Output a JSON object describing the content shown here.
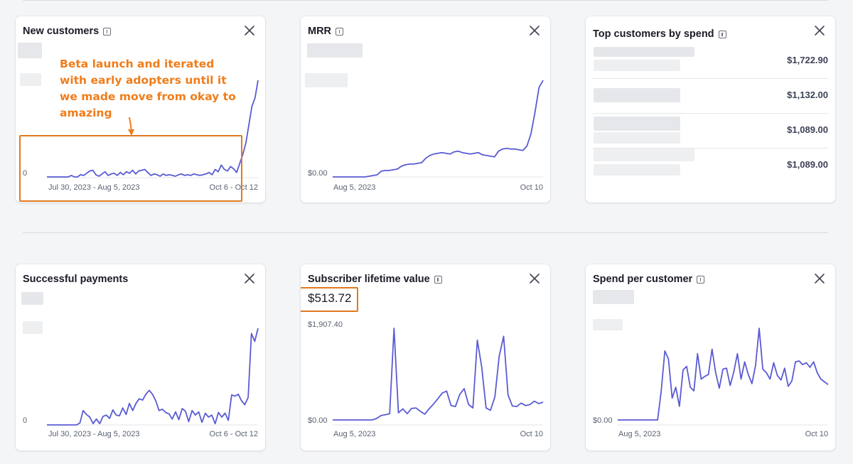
{
  "cards": [
    {
      "id": "new_customers",
      "title": "New customers",
      "close": "×"
    },
    {
      "id": "mrr",
      "title": "MRR",
      "close": "×"
    },
    {
      "id": "top_customers",
      "title": "Top customers by spend",
      "close": "×"
    },
    {
      "id": "successful_payments",
      "title": "Successful payments",
      "close": "×"
    },
    {
      "id": "subscriber_ltv",
      "title": "Subscriber lifetime value",
      "value": "$513.72",
      "close": "×"
    },
    {
      "id": "spend_per_customer",
      "title": "Spend per customer",
      "close": "×"
    }
  ],
  "annotation": {
    "text": "Beta launch and iterated with early adopters until it we made move from okay to amazing",
    "color": "#f07c1a"
  },
  "top_customers": {
    "amounts": [
      "$1,722.90",
      "$1,132.00",
      "$1,089.00",
      "$1,089.00"
    ]
  },
  "colors": {
    "line": "#5a5bd4",
    "highlight": "#e07a1f",
    "axis": "#596171"
  },
  "chart_data": [
    {
      "type": "line",
      "card": "New customers",
      "y_label_min": "0",
      "x_tick_labels": [
        "Jul 30, 2023 - Aug 5, 2023",
        "Oct 6 - Oct 12"
      ],
      "series": [
        {
          "values": [
            0,
            0,
            0,
            0,
            0,
            0,
            0,
            0,
            0.2,
            0,
            0,
            0.3,
            0.2,
            0.5,
            0.8,
            0.9,
            0.3,
            0.1,
            0.4,
            0.7,
            0.2,
            0.4,
            0.5,
            0.2,
            0.6,
            0.3,
            0.7,
            0.5,
            0.9,
            0.4,
            0.8,
            0.9,
            1.0,
            0.6,
            0.2,
            0.4,
            0.3,
            0.1,
            0.4,
            0.2,
            0.3,
            0.2,
            0.1,
            0.3,
            0.4,
            0.2,
            0.3,
            0.2,
            0.4,
            0.3,
            0.2,
            0.3,
            0.4,
            0.6,
            0.3,
            1.0,
            0.7,
            1.6,
            1.0,
            0.8,
            1.4,
            1.1,
            0.6,
            1.8,
            3.0,
            4.5,
            7.0,
            9.5,
            10.6,
            13.0
          ]
        }
      ]
    },
    {
      "type": "line",
      "card": "MRR",
      "y_label_min": "$0.00",
      "x_tick_labels": [
        "Aug 5, 2023",
        "Oct 10"
      ],
      "series": [
        {
          "values": [
            0,
            0,
            0,
            0,
            0,
            0,
            0,
            0,
            0,
            0.1,
            0.2,
            0.3,
            0.8,
            0.9,
            0.9,
            1.0,
            1.1,
            1.5,
            1.7,
            1.8,
            1.8,
            1.9,
            2.0,
            2.6,
            3.0,
            3.2,
            3.3,
            3.4,
            3.3,
            3.2,
            3.5,
            3.6,
            3.4,
            3.3,
            3.2,
            3.3,
            3.4,
            3.1,
            3.0,
            2.9,
            2.8,
            3.6,
            3.9,
            4.0,
            3.9,
            3.9,
            3.8,
            3.7,
            4.3,
            6.0,
            9.0,
            12.5,
            13.5
          ]
        }
      ]
    },
    {
      "type": "line",
      "card": "Successful payments",
      "y_label_min": "0",
      "x_tick_labels": [
        "Jul 30, 2023 - Aug 5, 2023",
        "Oct 6 - Oct 12"
      ],
      "series": [
        {
          "values": [
            0,
            0,
            0,
            0,
            0,
            0,
            0,
            0,
            0,
            0,
            0.3,
            2.2,
            1.6,
            1.2,
            0.2,
            0.9,
            0.2,
            1.3,
            1.5,
            1.0,
            2.3,
            1.5,
            1.4,
            2.6,
            1.6,
            3.3,
            2.2,
            3.3,
            4.0,
            3.8,
            4.7,
            5.3,
            4.7,
            3.7,
            2.2,
            2.4,
            1.9,
            1.7,
            0.9,
            2.0,
            0.8,
            2.5,
            2.1,
            0.5,
            2.2,
            1.5,
            2.0,
            0.4,
            1.8,
            1.2,
            1.5,
            0.2,
            1.9,
            1.2,
            1.8,
            0.7,
            4.6,
            4.4,
            4.7,
            3.7,
            3.1,
            4.2,
            14.0,
            12.8,
            14.8
          ]
        }
      ]
    },
    {
      "type": "line",
      "card": "Subscriber lifetime value",
      "y_label_max": "$1,907.40",
      "y_label_min": "$0.00",
      "x_tick_labels": [
        "Aug 5, 2023",
        "Oct 10"
      ],
      "series": [
        {
          "values": [
            0,
            0,
            0,
            0,
            0,
            0,
            0,
            0,
            0,
            0,
            30,
            90,
            110,
            130,
            1907,
            150,
            230,
            130,
            240,
            250,
            180,
            120,
            230,
            330,
            440,
            560,
            600,
            300,
            280,
            530,
            650,
            320,
            250,
            1660,
            1100,
            250,
            200,
            480,
            1330,
            1740,
            520,
            290,
            280,
            350,
            300,
            320,
            390,
            340,
            370
          ]
        }
      ]
    },
    {
      "type": "line",
      "card": "Spend per customer",
      "y_label_min": "$0.00",
      "x_tick_labels": [
        "Aug 5, 2023",
        "Oct 10"
      ],
      "series": [
        {
          "values": [
            0,
            0,
            0,
            0,
            0,
            0,
            0,
            0,
            0,
            0,
            0,
            0,
            3.2,
            7.6,
            6.7,
            2.4,
            3.6,
            1.5,
            5.5,
            5.9,
            3.6,
            3.2,
            7.3,
            4.5,
            4.8,
            5.0,
            7.8,
            5.2,
            3.5,
            5.6,
            5.7,
            3.8,
            5.3,
            7.3,
            4.5,
            6.4,
            5.0,
            4.0,
            6.0,
            10.1,
            5.6,
            5.2,
            4.5,
            6.3,
            4.9,
            4.4,
            5.7,
            3.7,
            4.3,
            6.4,
            6.5,
            6.1,
            6.3,
            5.8,
            6.4,
            5.2,
            4.5,
            4.2,
            3.9
          ]
        }
      ]
    }
  ]
}
